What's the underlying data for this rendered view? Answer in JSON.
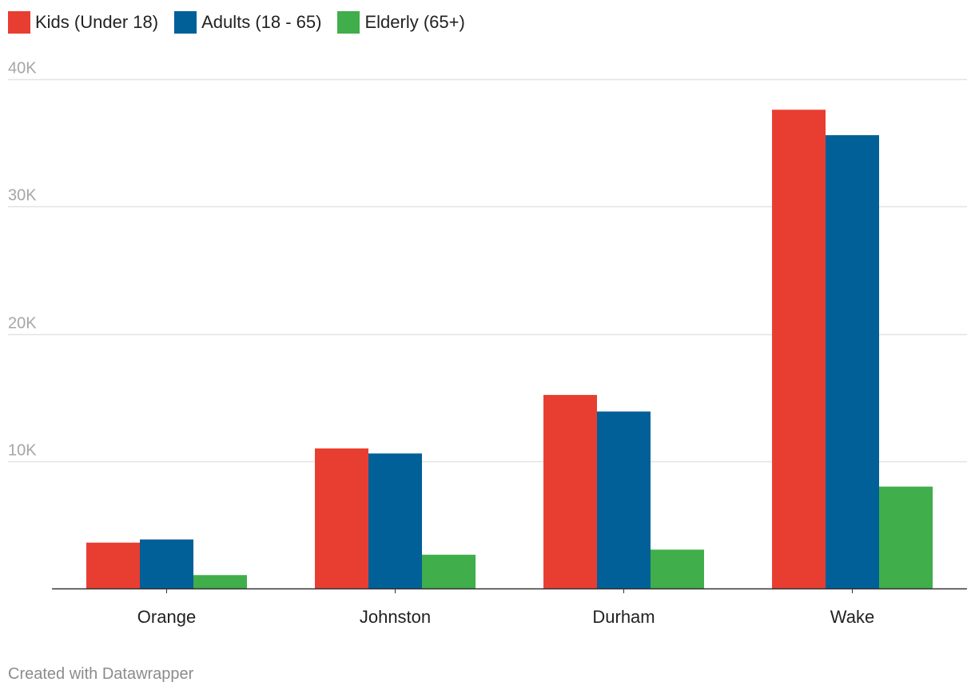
{
  "chart_data": {
    "type": "bar",
    "title": "",
    "xlabel": "",
    "ylabel": "",
    "ylim": [
      0,
      40000
    ],
    "grid": true,
    "legend_position": "top-left",
    "categories": [
      "Orange",
      "Johnston",
      "Durham",
      "Wake"
    ],
    "series": [
      {
        "name": "Kids (Under 18)",
        "color": "#e83e32",
        "values": [
          3600,
          11000,
          15200,
          37600
        ]
      },
      {
        "name": "Adults (18 - 65)",
        "color": "#006097",
        "values": [
          3850,
          10600,
          13900,
          35600
        ]
      },
      {
        "name": "Elderly (65+)",
        "color": "#40ae4b",
        "values": [
          1050,
          2650,
          3050,
          8000
        ]
      }
    ],
    "y_ticks": [
      {
        "value": 10000,
        "label": "10K"
      },
      {
        "value": 20000,
        "label": "20K"
      },
      {
        "value": 30000,
        "label": "30K"
      },
      {
        "value": 40000,
        "label": "40K"
      }
    ]
  },
  "legend": {
    "items": [
      {
        "label": "Kids (Under 18)",
        "color": "#e83e32"
      },
      {
        "label": "Adults (18 - 65)",
        "color": "#006097"
      },
      {
        "label": "Elderly (65+)",
        "color": "#40ae4b"
      }
    ]
  },
  "footer": {
    "credit": "Created with Datawrapper"
  }
}
